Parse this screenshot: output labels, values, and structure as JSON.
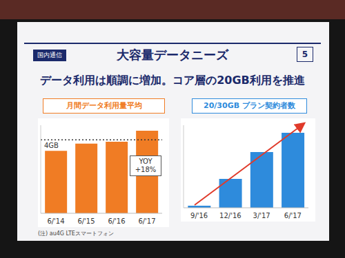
{
  "slide": {
    "tag": "国内通信",
    "title": "大容量データニーズ",
    "page": 5,
    "subtitle": "データ利用は順調に増加。コア層の20GB利用を推進"
  },
  "chart_data": [
    {
      "type": "bar",
      "title": "月間データ利用量平均",
      "categories": [
        "6/'14",
        "6/'15",
        "6/'16",
        "6/'17"
      ],
      "values": [
        3.4,
        3.8,
        3.9,
        4.5
      ],
      "color": "#f07c24",
      "ylim": [
        0,
        4.8
      ],
      "tick_labels": "x",
      "reference_line": {
        "value": 4,
        "label": "4GB"
      },
      "annotation": [
        "YOY",
        "+18%"
      ],
      "note": "(注) au4G LTEスマートフォン"
    },
    {
      "type": "bar",
      "title": "20/30GB プラン契約者数",
      "categories": [
        "9/'16",
        "12/'16",
        "3/'17",
        "6/'17"
      ],
      "values": [
        3,
        42,
        81,
        109
      ],
      "color": "#2e8bdc",
      "ylim": [
        0,
        120
      ],
      "tick_labels": "x"
    }
  ]
}
